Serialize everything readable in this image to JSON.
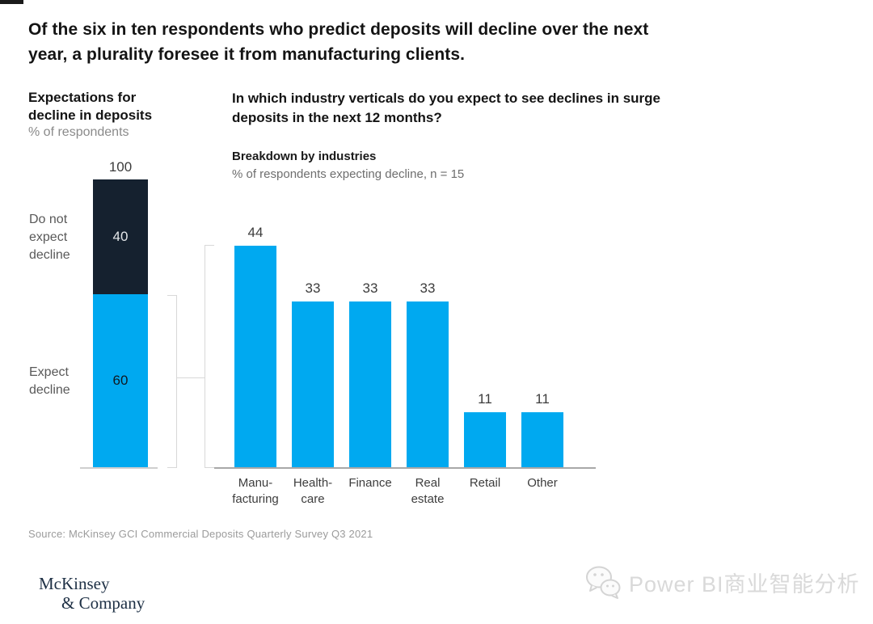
{
  "header": {
    "title_line1": "Of the six in ten respondents who predict deposits will decline over the next",
    "title_line2": "year, a plurality foresee it from manufacturing clients."
  },
  "left_chart": {
    "heading_line1": "Expectations for",
    "heading_line2": "decline in deposits",
    "unit_note": "% of respondents",
    "axis_top_label": "100",
    "segment_dark": {
      "value_label": "40",
      "label_line1": "Do not",
      "label_line2": "expect",
      "label_line3": "decline"
    },
    "segment_blue": {
      "value_label": "60",
      "label_line1": "Expect",
      "label_line2": "decline"
    }
  },
  "right_chart": {
    "question_line1": "In which industry verticals do you expect to see declines in surge",
    "question_line2": "deposits in the next 12 months?",
    "heading": "Breakdown by industries",
    "unit_note": "% of respondents expecting decline, n = 15",
    "bars": [
      {
        "value_label": "44",
        "label_line1": "Manu-",
        "label_line2": "facturing"
      },
      {
        "value_label": "33",
        "label_line1": "Health-",
        "label_line2": "care"
      },
      {
        "value_label": "33",
        "label_line1": "Finance",
        "label_line2": ""
      },
      {
        "value_label": "33",
        "label_line1": "Real",
        "label_line2": "estate"
      },
      {
        "value_label": "11",
        "label_line1": "Retail",
        "label_line2": ""
      },
      {
        "value_label": "11",
        "label_line1": "Other",
        "label_line2": ""
      }
    ]
  },
  "footer": {
    "source": "Source: McKinsey GCI Commercial Deposits Quarterly Survey Q3 2021",
    "logo_line1": "McKinsey",
    "logo_line2": "& Company",
    "watermark_text": "Power BI商业智能分析",
    "watermark_icon": "wechat-icon"
  },
  "colors": {
    "accent_blue": "#00a9f0",
    "accent_navy": "#15212f",
    "axis_gray": "#a8a8a8",
    "bracket_gray": "#d8d8d8",
    "logo_navy": "#1e3045",
    "watermark_gray": "#d9d9d9"
  },
  "chart_data": [
    {
      "type": "bar",
      "variant": "stacked-single-column",
      "title": "Expectations for decline in deposits",
      "ylabel": "% of respondents",
      "categories": [
        "Do not expect decline",
        "Expect decline"
      ],
      "values": [
        40,
        60
      ],
      "colors": [
        "#15212f",
        "#00a9f0"
      ],
      "total_label": 100,
      "ylim": [
        0,
        100
      ],
      "grid": false,
      "legend_position": "left-of-bar"
    },
    {
      "type": "bar",
      "title": "Breakdown by industries",
      "subtitle": "% of respondents expecting decline, n = 15",
      "xlabel": "",
      "ylabel": "% of respondents expecting decline",
      "categories": [
        "Manufacturing",
        "Healthcare",
        "Finance",
        "Real estate",
        "Retail",
        "Other"
      ],
      "values": [
        44,
        33,
        33,
        33,
        11,
        11
      ],
      "bar_color": "#00a9f0",
      "ylim": [
        0,
        47
      ],
      "grid": false,
      "data_labels": true
    }
  ]
}
